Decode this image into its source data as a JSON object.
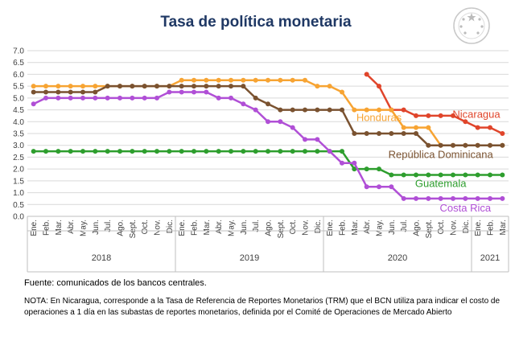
{
  "title": "Tasa de política monetaria",
  "source_note": "Fuente: comunicados de los bancos centrales.",
  "nota": "NOTA: En Nicaragua, corresponde a la Tasa de Referencia de Reportes Monetarios (TRM) que el BCN utiliza para indicar el costo de operaciones a 1 día en las subastas de reportes monetarios, definida por el Comité de Operaciones de Mercado Abierto",
  "chart_data": {
    "type": "line",
    "title": "Tasa de política monetaria",
    "ylim": [
      0,
      7
    ],
    "yticks": [
      "0.0",
      "0.5",
      "1.0",
      "1.5",
      "2.0",
      "2.5",
      "3.0",
      "3.5",
      "4.0",
      "4.5",
      "5.0",
      "5.5",
      "6.0",
      "6.5",
      "7.0"
    ],
    "grid": true,
    "categories": [
      "Ene.",
      "Feb.",
      "Mar.",
      "Abr.",
      "May.",
      "Jun.",
      "Jul.",
      "Ago.",
      "Sept.",
      "Oct.",
      "Nov.",
      "Dic.",
      "Ene.",
      "Feb.",
      "Mar.",
      "Abr.",
      "May.",
      "Jun.",
      "Jul.",
      "Ago.",
      "Sept.",
      "Oct.",
      "Nov.",
      "Dic.",
      "Ene.",
      "Feb.",
      "Mar.",
      "Abr.",
      "May.",
      "Jun.",
      "Jul.",
      "Ago.",
      "Sept.",
      "Oct.",
      "Nov.",
      "Dic.",
      "Ene.",
      "Feb.",
      "Mar."
    ],
    "years": [
      {
        "label": "2018",
        "start": 0,
        "end": 11
      },
      {
        "label": "2019",
        "start": 12,
        "end": 23
      },
      {
        "label": "2020",
        "start": 24,
        "end": 35
      },
      {
        "label": "2021",
        "start": 36,
        "end": 38
      }
    ],
    "series": [
      {
        "name": "Nicaragua",
        "color": "#e0452b",
        "label_pos": "upper-right",
        "values": [
          null,
          null,
          null,
          null,
          null,
          null,
          null,
          null,
          null,
          null,
          null,
          null,
          null,
          null,
          null,
          null,
          null,
          null,
          null,
          null,
          null,
          null,
          null,
          null,
          null,
          null,
          null,
          6.0,
          5.5,
          4.5,
          4.5,
          4.25,
          4.25,
          4.25,
          4.25,
          4.0,
          3.75,
          3.75,
          3.5
        ]
      },
      {
        "name": "Honduras",
        "color": "#f7a433",
        "label_pos": "middle",
        "values": [
          5.5,
          5.5,
          5.5,
          5.5,
          5.5,
          5.5,
          5.5,
          5.5,
          5.5,
          5.5,
          5.5,
          5.5,
          5.75,
          5.75,
          5.75,
          5.75,
          5.75,
          5.75,
          5.75,
          5.75,
          5.75,
          5.75,
          5.75,
          5.5,
          5.5,
          5.25,
          4.5,
          4.5,
          4.5,
          4.5,
          3.75,
          3.75,
          3.75,
          3.0,
          3.0,
          3.0,
          3.0,
          3.0,
          3.0
        ]
      },
      {
        "name": "República Dominicana",
        "color": "#7a5230",
        "label_pos": "lower-right",
        "values": [
          5.25,
          5.25,
          5.25,
          5.25,
          5.25,
          5.25,
          5.5,
          5.5,
          5.5,
          5.5,
          5.5,
          5.5,
          5.5,
          5.5,
          5.5,
          5.5,
          5.5,
          5.5,
          5.0,
          4.75,
          4.5,
          4.5,
          4.5,
          4.5,
          4.5,
          4.5,
          3.5,
          3.5,
          3.5,
          3.5,
          3.5,
          3.5,
          3.0,
          3.0,
          3.0,
          3.0,
          3.0,
          3.0,
          3.0
        ]
      },
      {
        "name": "Guatemala",
        "color": "#2e9e2e",
        "label_pos": "lower-right",
        "values": [
          2.75,
          2.75,
          2.75,
          2.75,
          2.75,
          2.75,
          2.75,
          2.75,
          2.75,
          2.75,
          2.75,
          2.75,
          2.75,
          2.75,
          2.75,
          2.75,
          2.75,
          2.75,
          2.75,
          2.75,
          2.75,
          2.75,
          2.75,
          2.75,
          2.75,
          2.75,
          2.0,
          2.0,
          2.0,
          1.75,
          1.75,
          1.75,
          1.75,
          1.75,
          1.75,
          1.75,
          1.75,
          1.75,
          1.75
        ]
      },
      {
        "name": "Costa Rica",
        "color": "#b04fd6",
        "label_pos": "bottom-right",
        "values": [
          4.75,
          5.0,
          5.0,
          5.0,
          5.0,
          5.0,
          5.0,
          5.0,
          5.0,
          5.0,
          5.0,
          5.25,
          5.25,
          5.25,
          5.25,
          5.0,
          5.0,
          4.75,
          4.5,
          4.0,
          4.0,
          3.75,
          3.25,
          3.25,
          2.75,
          2.25,
          2.25,
          1.25,
          1.25,
          1.25,
          0.75,
          0.75,
          0.75,
          0.75,
          0.75,
          0.75,
          0.75,
          0.75,
          0.75
        ]
      }
    ]
  }
}
